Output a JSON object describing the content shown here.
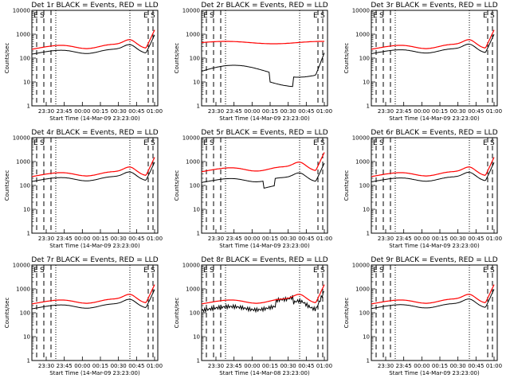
{
  "chart_data": [
    {
      "type": "line",
      "title": "Det 1r BLACK = Events, RED = LLD",
      "xlabel": "Start Time (14-Mar-09 23:23:00)",
      "ylabel": "Counts/sec",
      "y_scale": "log",
      "ylim": [
        1,
        10000
      ],
      "x_tick_labels": [
        "23:30",
        "23:45",
        "00:00",
        "00:15",
        "00:30",
        "00:45",
        "01:00"
      ],
      "y_tick_labels": [
        "1",
        "10",
        "100",
        "1000",
        "10000"
      ],
      "markers": [
        "E",
        "S",
        "E",
        "S"
      ],
      "black_shape": "smooth",
      "red_shape": "smooth",
      "black_level": 0.88,
      "red_level": 1.0,
      "series": [
        {
          "name": "BLACK = Events",
          "color": "#000000"
        },
        {
          "name": "RED = LLD",
          "color": "#ff0000"
        }
      ]
    },
    {
      "type": "line",
      "title": "Det 2r BLACK = Events, RED = LLD",
      "xlabel": "Start Time (14-Mar-09 23:23:00)",
      "ylabel": "Counts/sec",
      "y_scale": "log",
      "ylim": [
        1,
        10000
      ],
      "x_tick_labels": [
        "23:30",
        "23:45",
        "00:00",
        "00:15",
        "00:30",
        "00:45",
        "01:00"
      ],
      "y_tick_labels": [
        "1",
        "10",
        "100",
        "1000",
        "10000"
      ],
      "markers": [
        "E",
        "S",
        "E",
        "S"
      ],
      "black_shape": "low",
      "red_shape": "flat",
      "black_level": 1.0,
      "red_level": 1.0,
      "series": [
        {
          "name": "BLACK = Events",
          "color": "#000000"
        },
        {
          "name": "RED = LLD",
          "color": "#ff0000"
        }
      ]
    },
    {
      "type": "line",
      "title": "Det 3r BLACK = Events, RED = LLD",
      "xlabel": "Start Time (14-Mar-09 23:23:00)",
      "ylabel": "Counts/sec",
      "y_scale": "log",
      "ylim": [
        1,
        10000
      ],
      "x_tick_labels": [
        "23:30",
        "23:45",
        "00:00",
        "00:15",
        "00:30",
        "00:45",
        "01:00"
      ],
      "y_tick_labels": [
        "1",
        "10",
        "100",
        "1000",
        "10000"
      ],
      "markers": [
        "E",
        "S",
        "E",
        "S"
      ],
      "black_shape": "smooth",
      "red_shape": "smooth",
      "black_level": 0.92,
      "red_level": 1.0,
      "series": [
        {
          "name": "BLACK = Events",
          "color": "#000000"
        },
        {
          "name": "RED = LLD",
          "color": "#ff0000"
        }
      ]
    },
    {
      "type": "line",
      "title": "Det 4r BLACK = Events, RED = LLD",
      "xlabel": "Start Time (14-Mar-09 23:23:00)",
      "ylabel": "Counts/sec",
      "y_scale": "log",
      "ylim": [
        1,
        10000
      ],
      "x_tick_labels": [
        "23:30",
        "23:45",
        "00:00",
        "00:15",
        "00:30",
        "00:45",
        "01:00"
      ],
      "y_tick_labels": [
        "1",
        "10",
        "100",
        "1000",
        "10000"
      ],
      "markers": [
        "E",
        "S",
        "E",
        "S"
      ],
      "black_shape": "smooth",
      "red_shape": "smooth",
      "black_level": 0.88,
      "red_level": 1.0,
      "series": [
        {
          "name": "BLACK = Events",
          "color": "#000000"
        },
        {
          "name": "RED = LLD",
          "color": "#ff0000"
        }
      ]
    },
    {
      "type": "line",
      "title": "Det 5r BLACK = Events, RED = LLD",
      "xlabel": "Start Time (14-Mar-09 23:23:00)",
      "ylabel": "Counts/sec",
      "y_scale": "log",
      "ylim": [
        1,
        10000
      ],
      "x_tick_labels": [
        "23:30",
        "23:45",
        "00:00",
        "00:15",
        "00:30",
        "00:45",
        "01:00"
      ],
      "y_tick_labels": [
        "1",
        "10",
        "100",
        "1000",
        "10000"
      ],
      "markers": [
        "E",
        "S",
        "E",
        "S"
      ],
      "black_shape": "steps",
      "red_shape": "smooth",
      "black_level": 0.8,
      "red_level": 1.6,
      "series": [
        {
          "name": "BLACK = Events",
          "color": "#000000"
        },
        {
          "name": "RED = LLD",
          "color": "#ff0000"
        }
      ]
    },
    {
      "type": "line",
      "title": "Det 6r BLACK = Events, RED = LLD",
      "xlabel": "Start Time (14-Mar-09 23:23:00)",
      "ylabel": "Counts/sec",
      "y_scale": "log",
      "ylim": [
        1,
        10000
      ],
      "x_tick_labels": [
        "23:30",
        "23:45",
        "00:00",
        "00:15",
        "00:30",
        "00:45",
        "01:00"
      ],
      "y_tick_labels": [
        "1",
        "10",
        "100",
        "1000",
        "10000"
      ],
      "markers": [
        "E",
        "S",
        "E",
        "S"
      ],
      "black_shape": "smooth",
      "red_shape": "smooth",
      "black_level": 0.85,
      "red_level": 1.0,
      "series": [
        {
          "name": "BLACK = Events",
          "color": "#000000"
        },
        {
          "name": "RED = LLD",
          "color": "#ff0000"
        }
      ]
    },
    {
      "type": "line",
      "title": "Det 7r BLACK = Events, RED = LLD",
      "xlabel": "Start Time (14-Mar-09 23:23:00)",
      "ylabel": "Counts/sec",
      "y_scale": "log",
      "ylim": [
        1,
        10000
      ],
      "x_tick_labels": [
        "23:30",
        "23:45",
        "00:00",
        "00:15",
        "00:30",
        "00:45",
        "01:00"
      ],
      "y_tick_labels": [
        "1",
        "10",
        "100",
        "1000",
        "10000"
      ],
      "markers": [
        "E",
        "S",
        "E",
        "S"
      ],
      "black_shape": "smooth",
      "red_shape": "smooth",
      "black_level": 0.88,
      "red_level": 1.0,
      "series": [
        {
          "name": "BLACK = Events",
          "color": "#000000"
        },
        {
          "name": "RED = LLD",
          "color": "#ff0000"
        }
      ]
    },
    {
      "type": "line",
      "title": "Det 8r BLACK = Events, RED = LLD",
      "xlabel": "Start Time (14-Mar-08 23:23:00)",
      "ylabel": "Counts/sec",
      "y_scale": "log",
      "ylim": [
        1,
        10000
      ],
      "x_tick_labels": [
        "23:30",
        "23:45",
        "00:00",
        "00:15",
        "00:30",
        "00:45",
        "01:00"
      ],
      "y_tick_labels": [
        "1",
        "10",
        "100",
        "1000",
        "10000"
      ],
      "markers": [
        "E",
        "S",
        "E",
        "S"
      ],
      "black_shape": "noisy",
      "red_shape": "smooth",
      "black_level": 0.75,
      "red_level": 1.0,
      "series": [
        {
          "name": "BLACK = Events",
          "color": "#000000"
        },
        {
          "name": "RED = LLD",
          "color": "#ff0000"
        }
      ]
    },
    {
      "type": "line",
      "title": "Det 9r BLACK = Events, RED = LLD",
      "xlabel": "Start Time (14-Mar-09 23:23:00)",
      "ylabel": "Counts/sec",
      "y_scale": "log",
      "ylim": [
        1,
        10000
      ],
      "x_tick_labels": [
        "23:30",
        "23:45",
        "00:00",
        "00:15",
        "00:30",
        "00:45",
        "01:00"
      ],
      "y_tick_labels": [
        "1",
        "10",
        "100",
        "1000",
        "10000"
      ],
      "markers": [
        "E",
        "S",
        "E",
        "S"
      ],
      "black_shape": "smooth",
      "red_shape": "smooth",
      "black_level": 0.9,
      "red_level": 1.0,
      "series": [
        {
          "name": "BLACK = Events",
          "color": "#000000"
        },
        {
          "name": "RED = LLD",
          "color": "#ff0000"
        }
      ]
    }
  ]
}
